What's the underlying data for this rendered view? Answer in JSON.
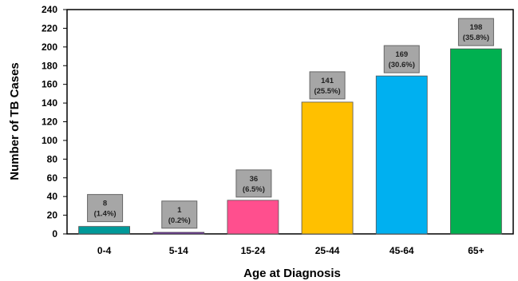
{
  "chart_data": {
    "type": "bar",
    "title": "",
    "xlabel": "Age at Diagnosis",
    "ylabel": "Number of TB Cases",
    "categories": [
      "0-4",
      "5-14",
      "15-24",
      "25-44",
      "45-64",
      "65+"
    ],
    "values": [
      8,
      1,
      36,
      141,
      169,
      198
    ],
    "data_labels": [
      {
        "count": "8",
        "pct": "(1.4%)"
      },
      {
        "count": "1",
        "pct": "(0.2%)"
      },
      {
        "count": "36",
        "pct": "(6.5%)"
      },
      {
        "count": "141",
        "pct": "(25.5%)"
      },
      {
        "count": "169",
        "pct": "(30.6%)"
      },
      {
        "count": "198",
        "pct": "(35.8%)"
      }
    ],
    "colors": [
      "#009999",
      "#7030a0",
      "#ff4f8e",
      "#ffc000",
      "#00b0f0",
      "#00b050"
    ],
    "callout_color": "#a6a6a6",
    "ylim": [
      0,
      240
    ],
    "yticks": [
      "0",
      "20",
      "40",
      "60",
      "80",
      "100",
      "120",
      "140",
      "160",
      "180",
      "200",
      "220",
      "240"
    ],
    "grid": false,
    "legend": "none"
  }
}
